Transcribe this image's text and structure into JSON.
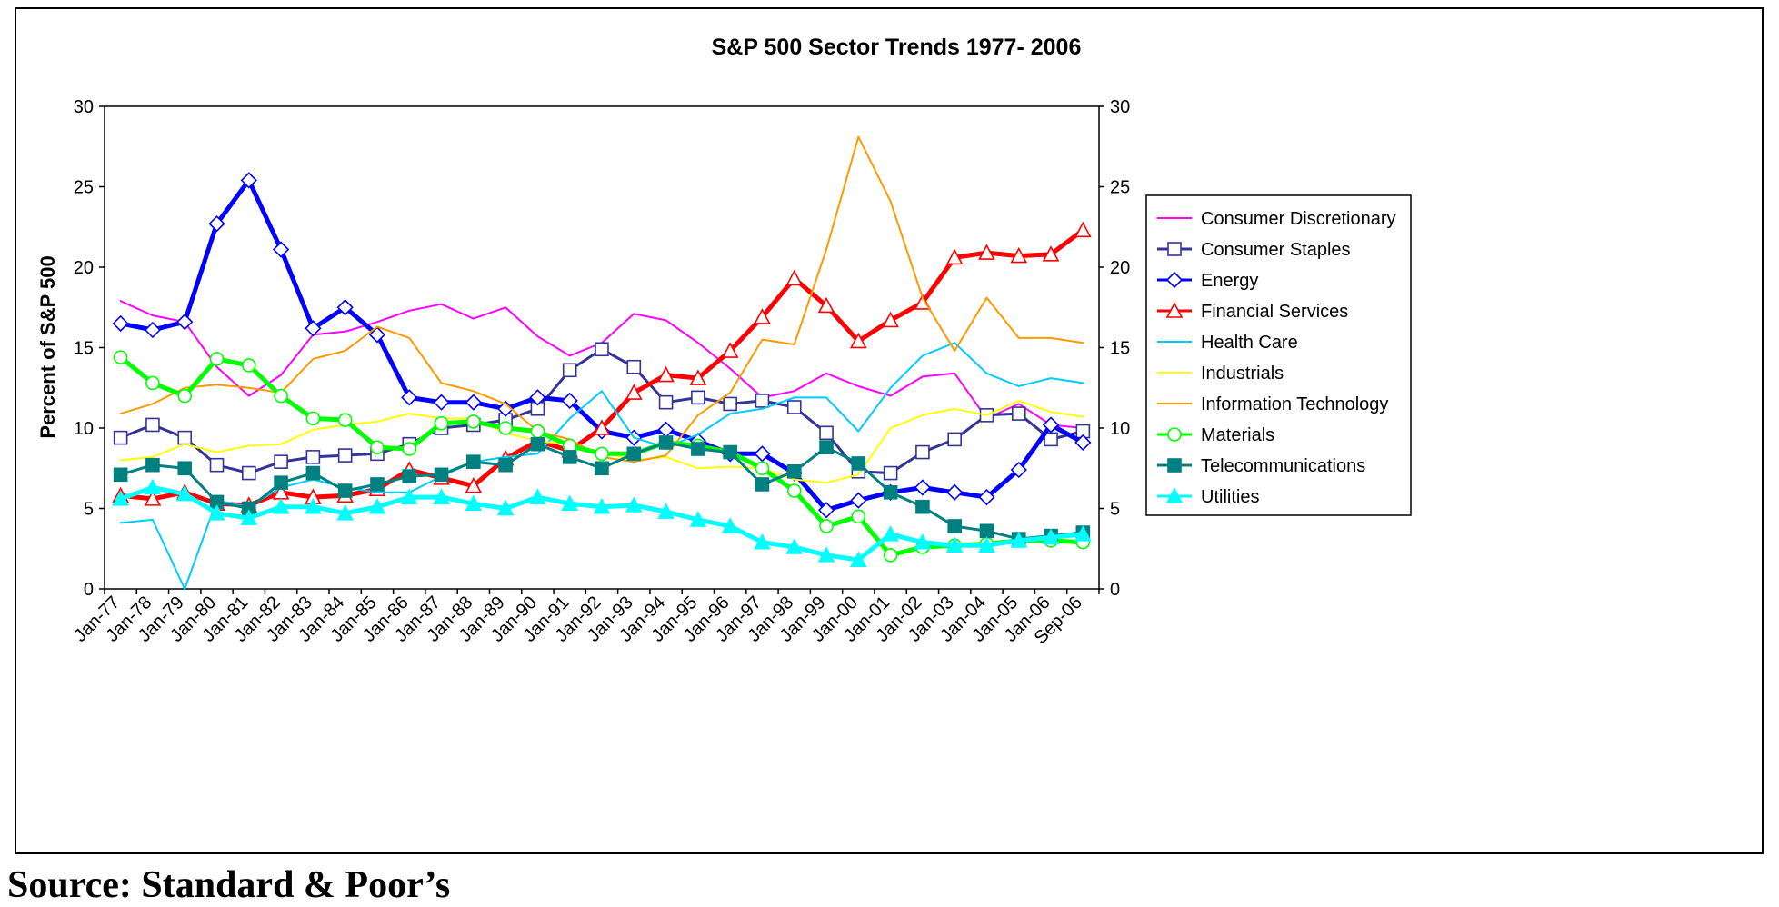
{
  "source": "Source: Standard & Poor’s",
  "chart_data": {
    "type": "line",
    "title": "S&P 500 Sector Trends 1977- 2006",
    "xlabel": "",
    "ylabel": "Percent of S&P 500",
    "ylim": [
      0,
      30
    ],
    "yticks": [
      0,
      5,
      10,
      15,
      20,
      25,
      30
    ],
    "secondary_y_axis": true,
    "grid": false,
    "legend_position": "right",
    "categories": [
      "Jan-77",
      "Jan-78",
      "Jan-79",
      "Jan-80",
      "Jan-81",
      "Jan-82",
      "Jan-83",
      "Jan-84",
      "Jan-85",
      "Jan-86",
      "Jan-87",
      "Jan-88",
      "Jan-89",
      "Jan-90",
      "Jan-91",
      "Jan-92",
      "Jan-93",
      "Jan-94",
      "Jan-95",
      "Jan-96",
      "Jan-97",
      "Jan-98",
      "Jan-99",
      "Jan-00",
      "Jan-01",
      "Jan-02",
      "Jan-03",
      "Jan-04",
      "Jan-05",
      "Jan-06",
      "Sep-06"
    ],
    "series": [
      {
        "name": "Consumer Discretionary",
        "color": "#ff00ff",
        "width": 2,
        "marker": "none",
        "values": [
          17.9,
          17.0,
          16.6,
          13.8,
          12.0,
          13.3,
          15.8,
          16.0,
          16.6,
          17.3,
          17.7,
          16.8,
          17.5,
          15.7,
          14.5,
          15.3,
          17.1,
          16.7,
          15.3,
          13.7,
          11.9,
          12.3,
          13.4,
          12.6,
          12.0,
          13.2,
          13.4,
          10.6,
          11.5,
          10.2,
          10.0
        ]
      },
      {
        "name": "Consumer Staples",
        "color": "#333399",
        "width": 3,
        "marker": "square-open",
        "values": [
          9.4,
          10.2,
          9.4,
          7.7,
          7.2,
          7.9,
          8.2,
          8.3,
          8.4,
          9.0,
          10.0,
          10.2,
          10.5,
          11.2,
          13.6,
          14.9,
          13.8,
          11.6,
          11.9,
          11.5,
          11.7,
          11.3,
          9.7,
          7.3,
          7.2,
          8.5,
          9.3,
          10.8,
          10.9,
          9.3,
          9.8
        ]
      },
      {
        "name": "Energy",
        "color": "#0000ff",
        "width": 5,
        "marker": "diamond-open",
        "values": [
          16.5,
          16.1,
          16.6,
          22.7,
          25.4,
          21.1,
          16.2,
          17.5,
          15.8,
          11.9,
          11.6,
          11.6,
          11.2,
          11.9,
          11.7,
          9.8,
          9.4,
          9.9,
          9.2,
          8.4,
          8.4,
          7.2,
          4.9,
          5.5,
          6.0,
          6.3,
          6.0,
          5.7,
          7.4,
          10.2,
          9.1
        ]
      },
      {
        "name": "Financial Services",
        "color": "#ff0000",
        "width": 5,
        "marker": "triangle-open",
        "values": [
          5.8,
          5.6,
          6.0,
          5.3,
          5.2,
          6.0,
          5.7,
          5.8,
          6.2,
          7.4,
          6.9,
          6.4,
          8.1,
          9.2,
          8.6,
          10.0,
          12.2,
          13.3,
          13.1,
          14.8,
          16.9,
          19.3,
          17.6,
          15.4,
          16.7,
          17.8,
          20.6,
          20.9,
          20.7,
          20.8,
          22.3
        ]
      },
      {
        "name": "Health Care",
        "color": "#00ccff",
        "width": 2,
        "marker": "none",
        "values": [
          4.1,
          4.3,
          0.0,
          5.5,
          5.1,
          6.3,
          6.8,
          6.3,
          6.0,
          6.0,
          7.0,
          7.9,
          8.2,
          8.4,
          10.6,
          12.3,
          9.4,
          8.8,
          9.6,
          10.9,
          11.2,
          11.9,
          11.9,
          9.8,
          12.5,
          14.5,
          15.3,
          13.4,
          12.6,
          13.1,
          12.8
        ]
      },
      {
        "name": "Industrials",
        "color": "#ffff00",
        "width": 2,
        "marker": "none",
        "values": [
          8.0,
          8.2,
          9.0,
          8.5,
          8.9,
          9.0,
          9.9,
          10.2,
          10.4,
          10.9,
          10.6,
          10.6,
          9.7,
          9.2,
          9.0,
          8.5,
          8.0,
          8.2,
          7.5,
          7.6,
          7.5,
          6.8,
          6.6,
          7.1,
          10.0,
          10.8,
          11.2,
          10.8,
          11.7,
          11.0,
          10.7
        ]
      },
      {
        "name": "Information Technology",
        "color": "#ff9900",
        "width": 2,
        "marker": "none",
        "values": [
          10.9,
          11.5,
          12.5,
          12.7,
          12.5,
          12.2,
          14.3,
          14.8,
          16.3,
          15.6,
          12.8,
          12.3,
          11.5,
          9.8,
          9.3,
          8.2,
          7.9,
          8.3,
          10.8,
          12.2,
          15.5,
          15.2,
          21.1,
          28.1,
          24.1,
          18.1,
          14.8,
          18.1,
          15.6,
          15.6,
          15.3
        ]
      },
      {
        "name": "Materials",
        "color": "#00ff00",
        "width": 5,
        "marker": "circle-open",
        "values": [
          14.4,
          12.8,
          12.0,
          14.3,
          13.9,
          12.0,
          10.6,
          10.5,
          8.8,
          8.7,
          10.3,
          10.4,
          10.0,
          9.8,
          8.9,
          8.4,
          8.4,
          9.1,
          8.9,
          8.5,
          7.5,
          6.1,
          3.9,
          4.5,
          2.1,
          2.6,
          2.7,
          2.8,
          3.0,
          3.0,
          2.9
        ]
      },
      {
        "name": "Telecommunications",
        "color": "#008080",
        "width": 3,
        "marker": "square-filled",
        "values": [
          7.1,
          7.7,
          7.5,
          5.4,
          5.0,
          6.6,
          7.2,
          6.1,
          6.5,
          7.0,
          7.1,
          7.9,
          7.7,
          9.0,
          8.2,
          7.5,
          8.4,
          9.1,
          8.7,
          8.5,
          6.5,
          7.3,
          8.8,
          7.8,
          6.0,
          5.1,
          3.9,
          3.6,
          3.1,
          3.3,
          3.5
        ]
      },
      {
        "name": "Utilities",
        "color": "#00ffff",
        "width": 5,
        "marker": "triangle-filled",
        "values": [
          5.6,
          6.3,
          5.9,
          4.7,
          4.4,
          5.1,
          5.1,
          4.7,
          5.1,
          5.7,
          5.7,
          5.3,
          5.0,
          5.7,
          5.3,
          5.1,
          5.2,
          4.8,
          4.3,
          3.9,
          2.9,
          2.6,
          2.1,
          1.8,
          3.4,
          2.9,
          2.7,
          2.7,
          3.0,
          3.2,
          3.4
        ]
      }
    ]
  }
}
